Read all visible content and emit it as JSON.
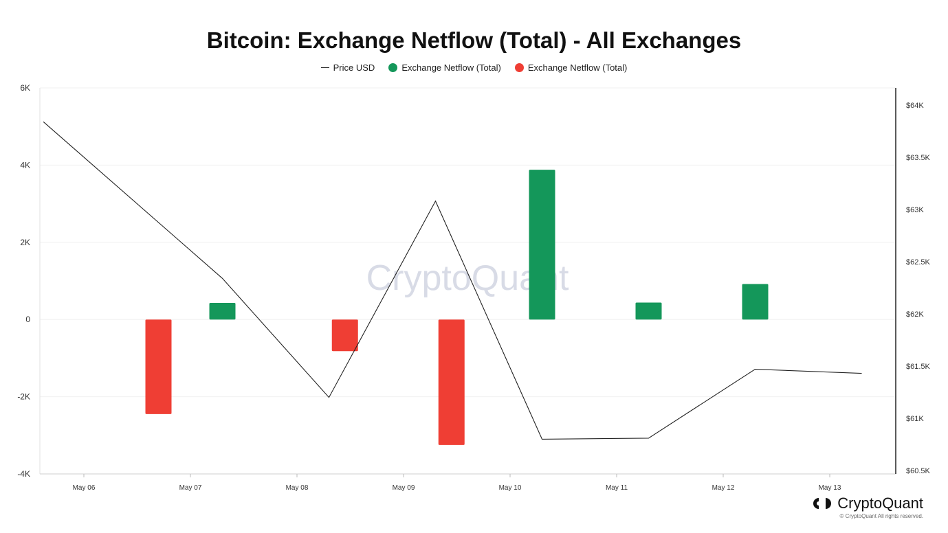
{
  "chart_data": {
    "type": "bar",
    "title": "Bitcoin: Exchange Netflow (Total) - All Exchanges",
    "categories": [
      "May 06",
      "May 07",
      "May 08",
      "May 09",
      "May 10",
      "May 11",
      "May 12",
      "May 13"
    ],
    "left_axis": {
      "ticks": [
        "6K",
        "4K",
        "2K",
        "0",
        "-2K",
        "-4K"
      ],
      "tick_values": [
        6000,
        4000,
        2000,
        0,
        -2000,
        -4000
      ],
      "ylim": [
        -4000,
        6000
      ]
    },
    "right_axis": {
      "ticks": [
        "$64K",
        "$63.5K",
        "$63K",
        "$62.5K",
        "$62K",
        "$61.5K",
        "$61K",
        "$60.5K"
      ],
      "tick_values": [
        64000,
        63500,
        63000,
        62500,
        62000,
        61500,
        61000,
        60500
      ],
      "ylim": [
        60500,
        64200
      ]
    },
    "series": [
      {
        "name": "Price USD",
        "kind": "line",
        "color": "#222222",
        "x": [
          5.62,
          7.3,
          8.3,
          9.3,
          10.3,
          11.3,
          12.3,
          13.3
        ],
        "values": [
          63840,
          62340,
          61200,
          63080,
          60800,
          60810,
          61470,
          61430
        ]
      },
      {
        "name": "Exchange Netflow (Total)",
        "kind": "bar",
        "color": "#14975a",
        "x": [
          6.7,
          7.3,
          8.3,
          9.3,
          10.3,
          11.3,
          12.3
        ],
        "values": [
          null,
          430,
          null,
          null,
          3880,
          440,
          920
        ]
      },
      {
        "name": "Exchange Netflow (Total)",
        "kind": "bar",
        "color": "#ef3e34",
        "x": [
          6.7,
          7.3,
          8.45,
          9.45,
          10.3,
          11.3,
          12.3
        ],
        "values": [
          -2450,
          null,
          -820,
          -3250,
          null,
          null,
          null
        ]
      }
    ],
    "legend": [
      {
        "label": "Price USD",
        "marker": "line",
        "color": "#222222"
      },
      {
        "label": "Exchange Netflow (Total)",
        "marker": "dot",
        "color": "#14975a"
      },
      {
        "label": "Exchange Netflow (Total)",
        "marker": "dot",
        "color": "#ef3e34"
      }
    ],
    "legend_placement": "top-center",
    "grid": true,
    "watermark": "CryptoQuant"
  },
  "brand": {
    "name": "CryptoQuant",
    "copyright": "© CryptoQuant All rights reserved."
  }
}
